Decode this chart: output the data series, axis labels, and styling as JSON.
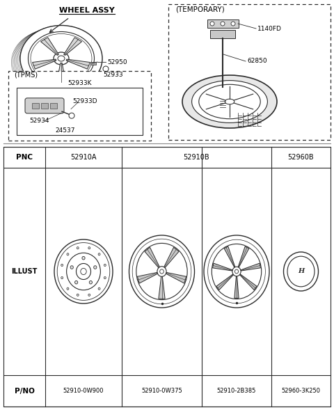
{
  "bg_color": "#ffffff",
  "line_color": "#2a2a2a",
  "labels": {
    "wheel_assy": "WHEEL ASSY",
    "temporary": "(TEMPORARY)",
    "tpms": "(TPMS)",
    "p52950": "52950",
    "p52933": "52933",
    "p52933K": "52933K",
    "p52933D": "52933D",
    "p52934": "52934",
    "p24537": "24537",
    "p1140FD": "1140FD",
    "p62850": "62850"
  },
  "table": {
    "col_labels": [
      "PNC",
      "52910A",
      "52910B",
      "52960B"
    ],
    "pno_labels": [
      "P/NO",
      "52910-0W900",
      "52910-0W375",
      "52910-2B385",
      "52960-3K250"
    ],
    "row_labels": [
      "PNC",
      "ILLUST",
      "P/NO"
    ]
  }
}
